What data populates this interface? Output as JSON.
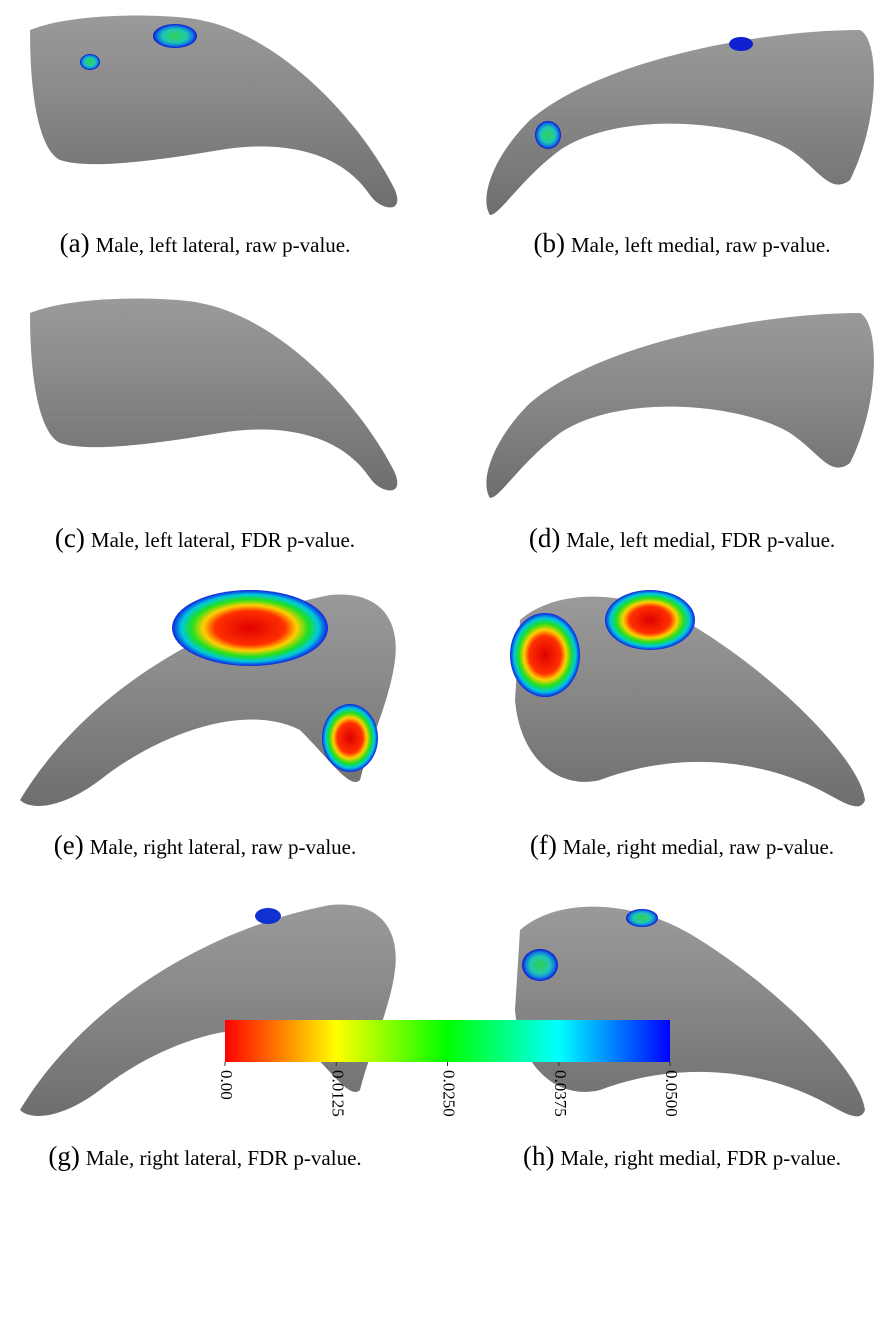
{
  "panels": [
    {
      "label": "(a)",
      "caption": "Male, left lateral, raw p-value."
    },
    {
      "label": "(b)",
      "caption": "Male, left medial, raw p-value."
    },
    {
      "label": "(c)",
      "caption": "Male, left lateral, FDR p-value."
    },
    {
      "label": "(d)",
      "caption": "Male, left medial, FDR p-value."
    },
    {
      "label": "(e)",
      "caption": "Male, right lateral, raw p-value."
    },
    {
      "label": "(f)",
      "caption": "Male, right medial, raw p-value."
    },
    {
      "label": "(g)",
      "caption": "Male, right lateral, FDR p-value."
    },
    {
      "label": "(h)",
      "caption": "Male, right medial, FDR p-value."
    }
  ],
  "colorbar": {
    "lim": [
      0,
      0.05
    ],
    "ticks": [
      {
        "value": 0,
        "label": "0.00"
      },
      {
        "value": 0.0125,
        "label": "0.0125"
      },
      {
        "value": 0.025,
        "label": "0.0250"
      },
      {
        "value": 0.0375,
        "label": "0.0375"
      },
      {
        "value": 0.05,
        "label": "0.0500"
      }
    ],
    "colors": [
      "#ff0000",
      "#ffff00",
      "#00ff00",
      "#00ffff",
      "#0000ff"
    ]
  }
}
